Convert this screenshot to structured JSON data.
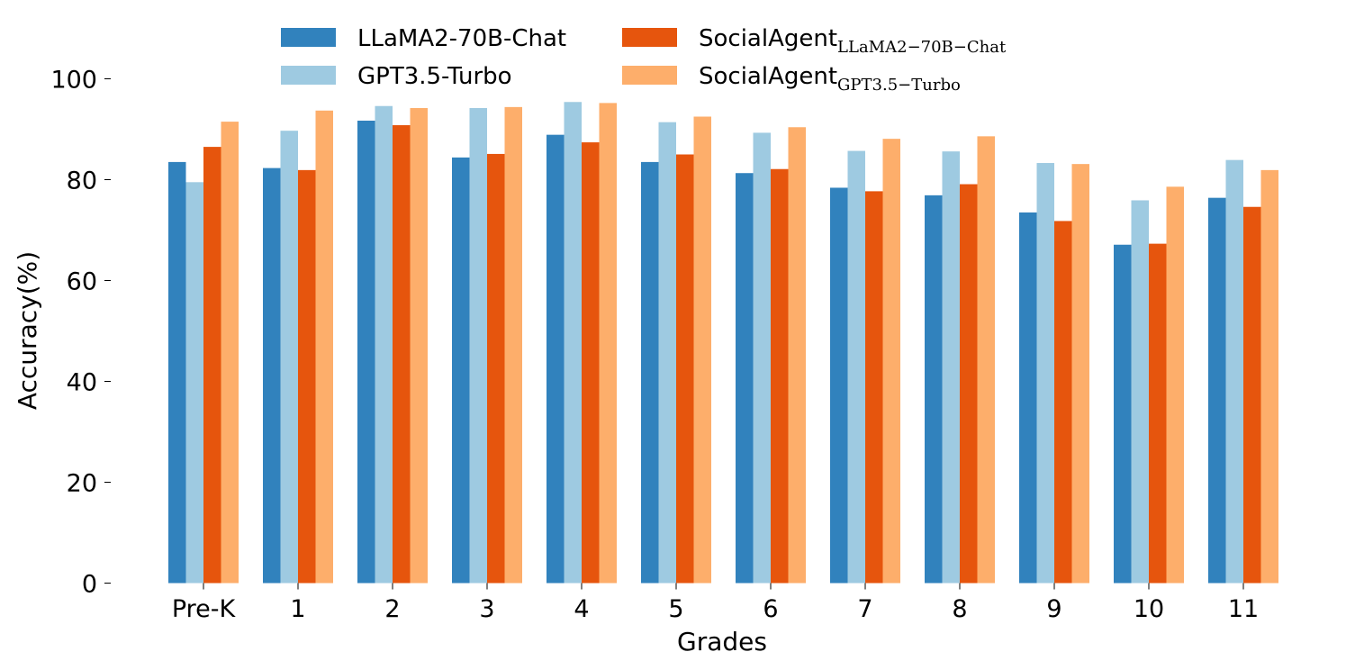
{
  "chart_data": {
    "type": "bar",
    "title": "",
    "xlabel": "Grades",
    "ylabel": "Accuracy(%)",
    "ylim": [
      0,
      100
    ],
    "yticks": [
      "0",
      "20",
      "40",
      "60",
      "80",
      "100"
    ],
    "categories": [
      "Pre-K",
      "1",
      "2",
      "3",
      "4",
      "5",
      "6",
      "7",
      "8",
      "9",
      "10",
      "11"
    ],
    "legend_placement": "top-center",
    "grid": false,
    "series": [
      {
        "name": "LLaMA2-70B-Chat",
        "name_main": "LLaMA2-70B-Chat",
        "name_sub": "",
        "color": "#3182bd",
        "values": [
          83.5,
          82.3,
          91.7,
          84.4,
          88.9,
          83.5,
          81.3,
          78.4,
          76.9,
          73.5,
          67.1,
          76.4
        ]
      },
      {
        "name": "GPT3.5-Turbo",
        "name_main": "GPT3.5-Turbo",
        "name_sub": "",
        "color": "#9ecae1",
        "values": [
          79.5,
          89.7,
          94.6,
          94.2,
          95.4,
          91.4,
          89.3,
          85.7,
          85.6,
          83.3,
          75.9,
          83.9
        ]
      },
      {
        "name": "SocialAgent_LLaMA2-70B-Chat",
        "name_main": "SocialAgent",
        "name_sub": "LLaMA2−70B−Chat",
        "color": "#e6550d",
        "values": [
          86.5,
          81.9,
          90.8,
          85.1,
          87.4,
          85.0,
          82.1,
          77.7,
          79.1,
          71.8,
          67.3,
          74.6
        ]
      },
      {
        "name": "SocialAgent_GPT3.5-Turbo",
        "name_main": "SocialAgent",
        "name_sub": "GPT3.5−Turbo",
        "color": "#fdae6b",
        "values": [
          91.5,
          93.7,
          94.2,
          94.4,
          95.2,
          92.5,
          90.4,
          88.1,
          88.6,
          83.1,
          78.6,
          81.9
        ]
      }
    ]
  }
}
